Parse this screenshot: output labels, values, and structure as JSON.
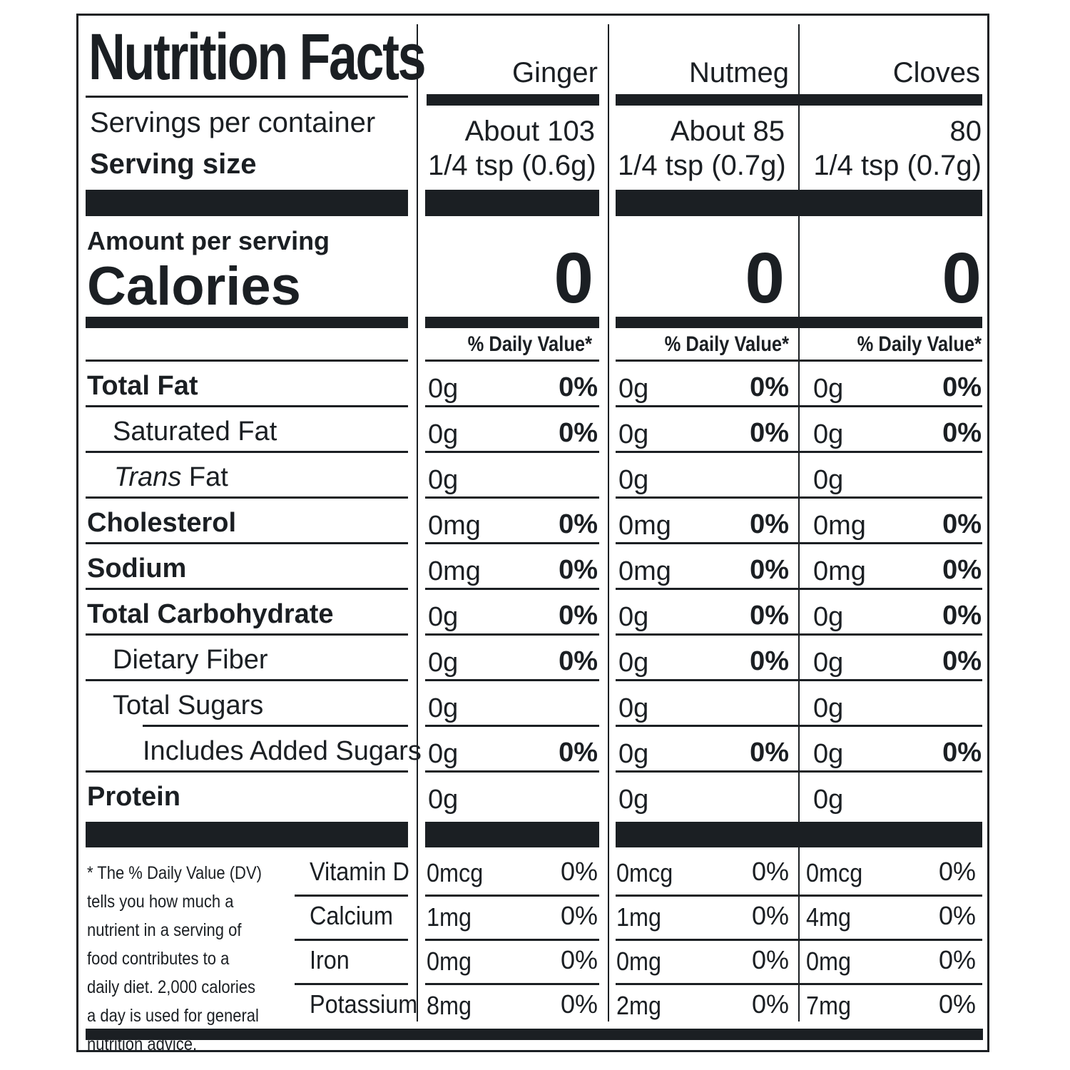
{
  "title": "Nutrition Facts",
  "columns": [
    "Ginger",
    "Nutmeg",
    "Cloves"
  ],
  "servings_label": "Servings per container",
  "serving_size_label": "Serving size",
  "servings": [
    "About 103",
    "About 85",
    "80"
  ],
  "serving_sizes": [
    "1/4 tsp (0.6g)",
    "1/4 tsp (0.7g)",
    "1/4 tsp (0.7g)"
  ],
  "amount_label": "Amount per serving",
  "calories_label": "Calories",
  "calories": [
    "0",
    "0",
    "0"
  ],
  "dv_header": "% Daily Value*",
  "rows": [
    {
      "label": "Total Fat",
      "cells": [
        [
          "0g",
          "0%"
        ],
        [
          "0g",
          "0%"
        ],
        [
          "0g",
          "0%"
        ]
      ]
    },
    {
      "label": "Saturated Fat",
      "cells": [
        [
          "0g",
          "0%"
        ],
        [
          "0g",
          "0%"
        ],
        [
          "0g",
          "0%"
        ]
      ]
    },
    {
      "label_italic": "Trans",
      "label": " Fat",
      "cells": [
        [
          "0g",
          ""
        ],
        [
          "0g",
          ""
        ],
        [
          "0g",
          ""
        ]
      ]
    },
    {
      "label": "Cholesterol",
      "cells": [
        [
          "0mg",
          "0%"
        ],
        [
          "0mg",
          "0%"
        ],
        [
          "0mg",
          "0%"
        ]
      ]
    },
    {
      "label": "Sodium",
      "cells": [
        [
          "0mg",
          "0%"
        ],
        [
          "0mg",
          "0%"
        ],
        [
          "0mg",
          "0%"
        ]
      ]
    },
    {
      "label": "Total Carbohydrate",
      "cells": [
        [
          "0g",
          "0%"
        ],
        [
          "0g",
          "0%"
        ],
        [
          "0g",
          "0%"
        ]
      ]
    },
    {
      "label": "Dietary Fiber",
      "cells": [
        [
          "0g",
          "0%"
        ],
        [
          "0g",
          "0%"
        ],
        [
          "0g",
          "0%"
        ]
      ]
    },
    {
      "label": "Total Sugars",
      "cells": [
        [
          "0g",
          ""
        ],
        [
          "0g",
          ""
        ],
        [
          "0g",
          ""
        ]
      ]
    },
    {
      "label": "Includes Added Sugars",
      "cells": [
        [
          "0g",
          "0%"
        ],
        [
          "0g",
          "0%"
        ],
        [
          "0g",
          "0%"
        ]
      ]
    },
    {
      "label": "Protein",
      "cells": [
        [
          "0g",
          ""
        ],
        [
          "0g",
          ""
        ],
        [
          "0g",
          ""
        ]
      ]
    }
  ],
  "vitamins": [
    {
      "label": "Vitamin D",
      "cells": [
        [
          "0mcg",
          "0%"
        ],
        [
          "0mcg",
          "0%"
        ],
        [
          "0mcg",
          "0%"
        ]
      ]
    },
    {
      "label": "Calcium",
      "cells": [
        [
          "1mg",
          "0%"
        ],
        [
          "1mg",
          "0%"
        ],
        [
          "4mg",
          "0%"
        ]
      ]
    },
    {
      "label": "Iron",
      "cells": [
        [
          "0mg",
          "0%"
        ],
        [
          "0mg",
          "0%"
        ],
        [
          "0mg",
          "0%"
        ]
      ]
    },
    {
      "label": "Potassium",
      "cells": [
        [
          "8mg",
          "0%"
        ],
        [
          "2mg",
          "0%"
        ],
        [
          "7mg",
          "0%"
        ]
      ]
    }
  ],
  "footnote": "* The % Daily Value (DV) tells you how much a nutrient in a serving of food contributes to a daily diet. 2,000 calories a day is used for general nutrition advice."
}
